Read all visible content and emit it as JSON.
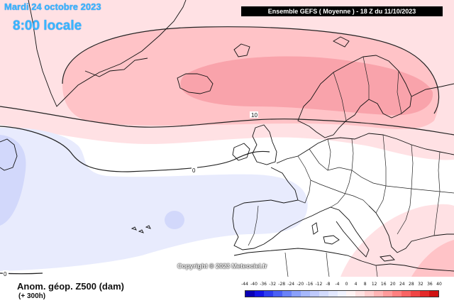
{
  "header": {
    "date": "Mardi 24 octobre 2023",
    "time": "8:00 locale",
    "model": "Ensemble GEFS  ( Moyenne )  - 18 Z du 11/10/2023"
  },
  "map": {
    "copyright": "Copyright © 2023 Meteociel.fr",
    "contour_labels": [
      "10",
      "0",
      "0"
    ]
  },
  "legend": {
    "variable": "Anom. géop. Z500 (dam)",
    "lead_time": "(+ 300h)",
    "scale_labels": [
      "-44",
      "-40",
      "-36",
      "-32",
      "-28",
      "-24",
      "-20",
      "-16",
      "-12",
      "-8",
      "-4",
      "0",
      "4",
      "8",
      "12",
      "16",
      "20",
      "24",
      "28",
      "32",
      "36",
      "40"
    ],
    "scale_colors": [
      "#0a00b5",
      "#1414e6",
      "#2e3df0",
      "#4a60f5",
      "#6a82f8",
      "#8aa0fb",
      "#a6b8fc",
      "#bfcafd",
      "#d2dbfe",
      "#e2e8ff",
      "#f0f3ff",
      "#fff4f4",
      "#ffe2e2",
      "#ffcdcd",
      "#ffb5b5",
      "#ff9b9b",
      "#ff8080",
      "#f86464",
      "#f04646",
      "#e42a2a",
      "#d01212"
    ]
  },
  "colors": {
    "text_blue": "#38b6ff",
    "pos_light": "#ffe1e4",
    "pos_mid": "#ffc3c7",
    "pos_strong": "#f9a3ab",
    "neg_light": "#e8ebfd",
    "neg_mid": "#d2d8fb"
  }
}
